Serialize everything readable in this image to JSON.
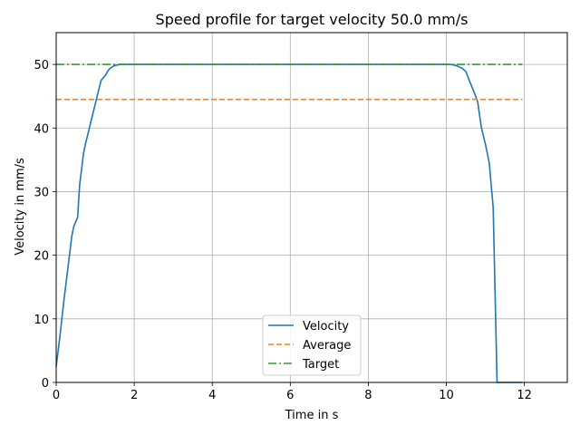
{
  "chart_data": {
    "type": "line",
    "title": "Speed profile for target velocity 50.0 mm/s",
    "xlabel": "Time in s",
    "ylabel": "Velocity in mm/s",
    "xlim": [
      0,
      13.1
    ],
    "ylim": [
      0,
      55
    ],
    "xticks": [
      0,
      2,
      4,
      6,
      8,
      10,
      12
    ],
    "yticks": [
      0,
      10,
      20,
      30,
      40,
      50
    ],
    "grid": true,
    "legend_position": "bottom-center",
    "series": [
      {
        "name": "Velocity",
        "color": "#1f77b4",
        "style": "solid",
        "x": [
          0,
          0.1,
          0.2,
          0.3,
          0.4,
          0.45,
          0.55,
          0.6,
          0.7,
          0.75,
          0.85,
          0.95,
          1.05,
          1.15,
          1.25,
          1.35,
          1.45,
          1.55,
          1.65,
          1.8,
          2.0,
          3.0,
          4.0,
          5.0,
          6.0,
          7.0,
          8.0,
          9.0,
          9.8,
          10.0,
          10.1,
          10.2,
          10.3,
          10.4,
          10.5,
          10.6,
          10.7,
          10.8,
          10.9,
          11.0,
          11.1,
          11.2,
          11.3,
          11.35,
          11.4,
          11.6,
          11.8,
          11.95
        ],
        "y": [
          2.5,
          7.5,
          13,
          18,
          23,
          24.5,
          26,
          31,
          36,
          37.5,
          40,
          42.5,
          45,
          47.5,
          48.2,
          49.2,
          49.7,
          49.9,
          50.0,
          50.0,
          50.0,
          50.0,
          50.0,
          50.0,
          50.0,
          50.0,
          50.0,
          50.0,
          50.0,
          50.0,
          50.0,
          49.9,
          49.7,
          49.4,
          48.9,
          47.3,
          45.8,
          44.2,
          40.0,
          37.5,
          34.5,
          27.5,
          0,
          0,
          0,
          0,
          0,
          0
        ]
      },
      {
        "name": "Average",
        "color": "#ff7f0e",
        "style": "dashed",
        "x": [
          0,
          11.95
        ],
        "y": [
          44.5,
          44.5
        ]
      },
      {
        "name": "Target",
        "color": "#2ca02c",
        "style": "dashdot",
        "x": [
          0,
          11.95
        ],
        "y": [
          50.0,
          50.0
        ]
      }
    ]
  }
}
